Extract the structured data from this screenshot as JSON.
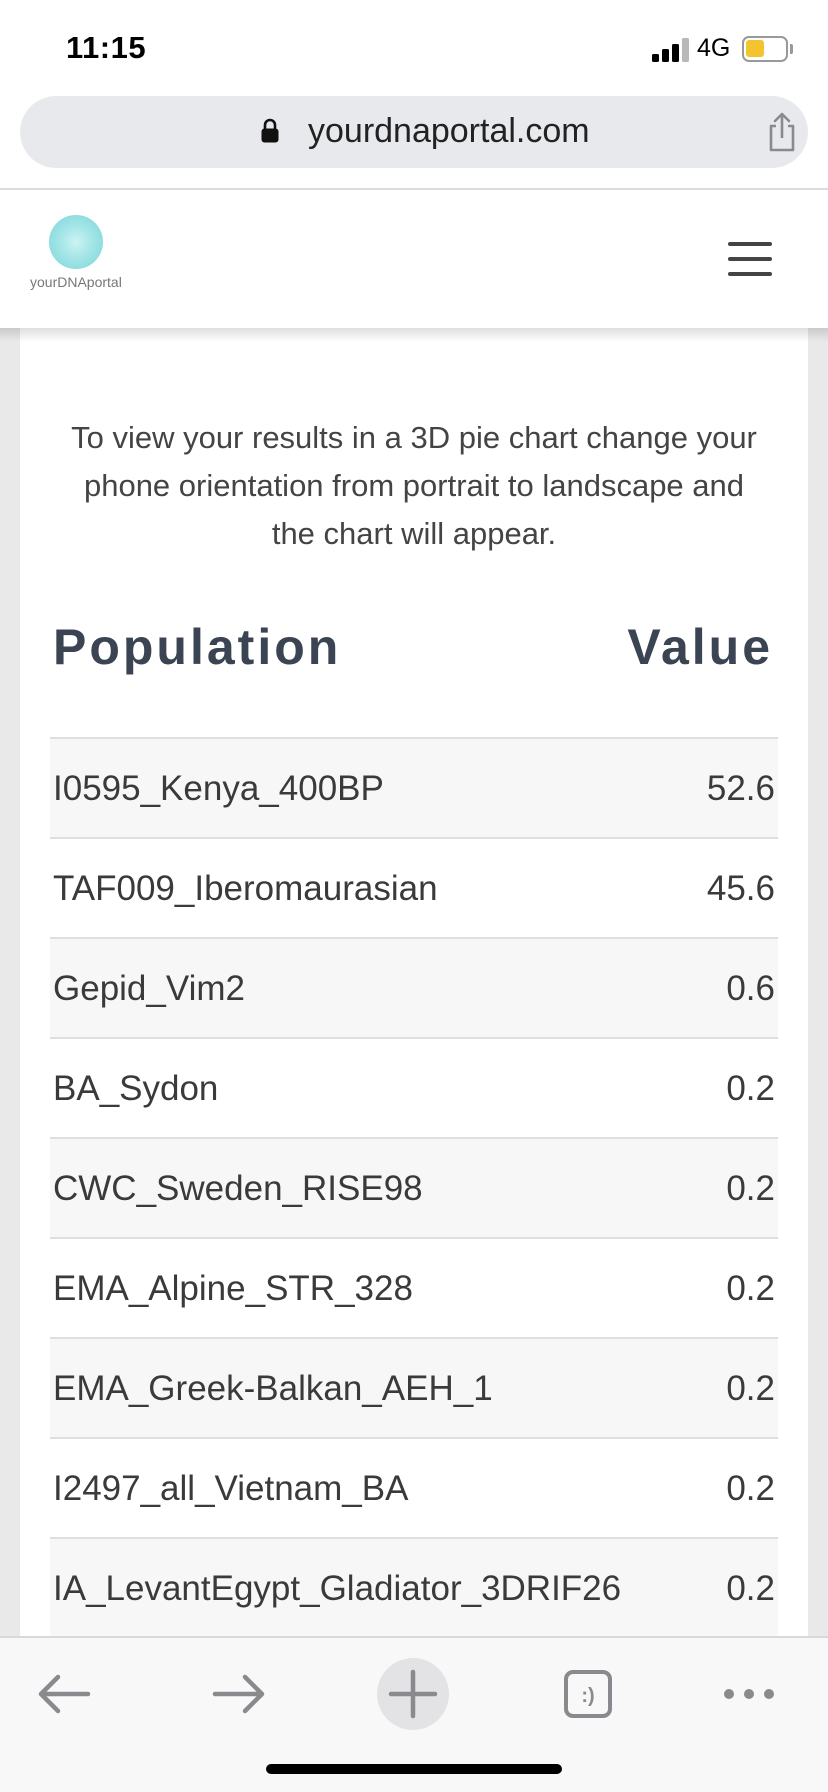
{
  "status_bar": {
    "time": "11:15",
    "network": "4G",
    "battery_color": "#f4c430"
  },
  "browser": {
    "url": "yourdnaportal.com",
    "icons": [
      "lock-icon",
      "share-icon"
    ]
  },
  "site": {
    "logo_text": "yourDNAportal",
    "menu_icon": "hamburger-menu-icon"
  },
  "main": {
    "intro": "To view your results in a 3D pie chart change your phone orientation from portrait to landscape and the chart will appear.",
    "table": {
      "headers": {
        "population": "Population",
        "value": "Value"
      },
      "rows": [
        {
          "population": "I0595_Kenya_400BP",
          "value": "52.6"
        },
        {
          "population": "TAF009_Iberomaurasian",
          "value": "45.6"
        },
        {
          "population": "Gepid_Vim2",
          "value": "0.6"
        },
        {
          "population": "BA_Sydon",
          "value": "0.2"
        },
        {
          "population": "CWC_Sweden_RISE98",
          "value": "0.2"
        },
        {
          "population": "EMA_Alpine_STR_328",
          "value": "0.2"
        },
        {
          "population": "EMA_Greek-Balkan_AEH_1",
          "value": "0.2"
        },
        {
          "population": "I2497_all_Vietnam_BA",
          "value": "0.2"
        },
        {
          "population": "IA_LevantEgypt_Gladiator_3DRIF26",
          "value": "0.2"
        }
      ]
    }
  },
  "toolbar": {
    "icons": [
      "back-arrow-icon",
      "forward-arrow-icon",
      "new-tab-plus-icon",
      "tabs-icon",
      "more-dots-icon"
    ],
    "tabs_icon_glyph": ":)"
  }
}
